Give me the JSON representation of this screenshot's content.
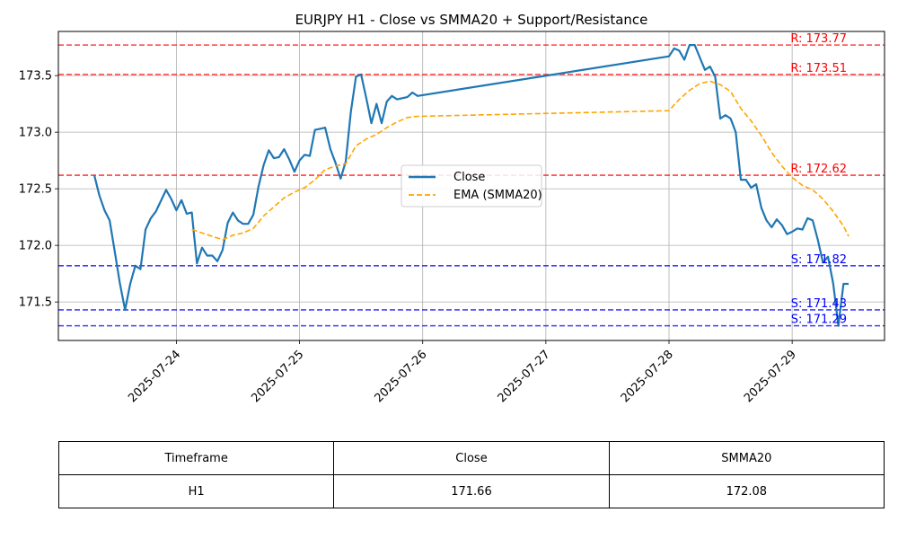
{
  "chart_data": {
    "type": "line",
    "title": "EURJPY H1 - Close vs SMMA20 + Support/Resistance",
    "xlabel": "",
    "ylabel": "",
    "grid": true,
    "legend_position": "center",
    "xlim": [
      "2025-07-23 01:00",
      "2025-07-29 18:00"
    ],
    "ylim": [
      171.16,
      173.89
    ],
    "x_ticks": [
      "2025-07-24",
      "2025-07-25",
      "2025-07-26",
      "2025-07-27",
      "2025-07-28",
      "2025-07-29"
    ],
    "y_ticks": [
      "171.5",
      "172.0",
      "172.5",
      "173.0",
      "173.5"
    ],
    "series": [
      {
        "name": "Close",
        "color": "#1f77b4",
        "style": "solid",
        "points": [
          [
            "2025-07-23 08:00",
            172.62
          ],
          [
            "2025-07-23 09:00",
            172.44
          ],
          [
            "2025-07-23 10:00",
            172.31
          ],
          [
            "2025-07-23 11:00",
            172.22
          ],
          [
            "2025-07-23 12:00",
            171.94
          ],
          [
            "2025-07-23 13:00",
            171.66
          ],
          [
            "2025-07-23 14:00",
            171.43
          ],
          [
            "2025-07-23 15:00",
            171.66
          ],
          [
            "2025-07-23 16:00",
            171.82
          ],
          [
            "2025-07-23 17:00",
            171.79
          ],
          [
            "2025-07-23 18:00",
            172.14
          ],
          [
            "2025-07-23 19:00",
            172.24
          ],
          [
            "2025-07-23 20:00",
            172.3
          ],
          [
            "2025-07-23 22:00",
            172.49
          ],
          [
            "2025-07-23 23:00",
            172.41
          ],
          [
            "2025-07-24 00:00",
            172.31
          ],
          [
            "2025-07-24 01:00",
            172.4
          ],
          [
            "2025-07-24 02:00",
            172.28
          ],
          [
            "2025-07-24 03:00",
            172.29
          ],
          [
            "2025-07-24 04:00",
            171.84
          ],
          [
            "2025-07-24 05:00",
            171.98
          ],
          [
            "2025-07-24 06:00",
            171.91
          ],
          [
            "2025-07-24 07:00",
            171.91
          ],
          [
            "2025-07-24 08:00",
            171.86
          ],
          [
            "2025-07-24 09:00",
            171.96
          ],
          [
            "2025-07-24 10:00",
            172.2
          ],
          [
            "2025-07-24 11:00",
            172.29
          ],
          [
            "2025-07-24 12:00",
            172.22
          ],
          [
            "2025-07-24 13:00",
            172.19
          ],
          [
            "2025-07-24 14:00",
            172.19
          ],
          [
            "2025-07-24 15:00",
            172.27
          ],
          [
            "2025-07-24 16:00",
            172.52
          ],
          [
            "2025-07-24 17:00",
            172.71
          ],
          [
            "2025-07-24 18:00",
            172.84
          ],
          [
            "2025-07-24 19:00",
            172.77
          ],
          [
            "2025-07-24 20:00",
            172.78
          ],
          [
            "2025-07-24 21:00",
            172.85
          ],
          [
            "2025-07-24 22:00",
            172.76
          ],
          [
            "2025-07-24 23:00",
            172.65
          ],
          [
            "2025-07-25 00:00",
            172.75
          ],
          [
            "2025-07-25 01:00",
            172.8
          ],
          [
            "2025-07-25 02:00",
            172.79
          ],
          [
            "2025-07-25 03:00",
            173.02
          ],
          [
            "2025-07-25 04:00",
            173.03
          ],
          [
            "2025-07-25 05:00",
            173.04
          ],
          [
            "2025-07-25 06:00",
            172.85
          ],
          [
            "2025-07-25 07:00",
            172.73
          ],
          [
            "2025-07-25 08:00",
            172.59
          ],
          [
            "2025-07-25 09:00",
            172.74
          ],
          [
            "2025-07-25 10:00",
            173.18
          ],
          [
            "2025-07-25 11:00",
            173.49
          ],
          [
            "2025-07-25 12:00",
            173.51
          ],
          [
            "2025-07-25 13:00",
            173.3
          ],
          [
            "2025-07-25 14:00",
            173.08
          ],
          [
            "2025-07-25 15:00",
            173.25
          ],
          [
            "2025-07-25 16:00",
            173.08
          ],
          [
            "2025-07-25 17:00",
            173.27
          ],
          [
            "2025-07-25 18:00",
            173.32
          ],
          [
            "2025-07-25 19:00",
            173.29
          ],
          [
            "2025-07-25 20:00",
            173.3
          ],
          [
            "2025-07-25 21:00",
            173.31
          ],
          [
            "2025-07-25 22:00",
            173.35
          ],
          [
            "2025-07-25 23:00",
            173.32
          ],
          [
            "2025-07-28 00:00",
            173.67
          ],
          [
            "2025-07-28 01:00",
            173.74
          ],
          [
            "2025-07-28 02:00",
            173.72
          ],
          [
            "2025-07-28 03:00",
            173.64
          ],
          [
            "2025-07-28 04:00",
            173.77
          ],
          [
            "2025-07-28 05:00",
            173.77
          ],
          [
            "2025-07-28 06:00",
            173.66
          ],
          [
            "2025-07-28 07:00",
            173.55
          ],
          [
            "2025-07-28 08:00",
            173.58
          ],
          [
            "2025-07-28 09:00",
            173.49
          ],
          [
            "2025-07-28 10:00",
            173.12
          ],
          [
            "2025-07-28 11:00",
            173.15
          ],
          [
            "2025-07-28 12:00",
            173.12
          ],
          [
            "2025-07-28 13:00",
            173.0
          ],
          [
            "2025-07-28 14:00",
            172.58
          ],
          [
            "2025-07-28 15:00",
            172.58
          ],
          [
            "2025-07-28 16:00",
            172.51
          ],
          [
            "2025-07-28 17:00",
            172.54
          ],
          [
            "2025-07-28 18:00",
            172.33
          ],
          [
            "2025-07-28 19:00",
            172.22
          ],
          [
            "2025-07-28 20:00",
            172.16
          ],
          [
            "2025-07-28 21:00",
            172.23
          ],
          [
            "2025-07-28 22:00",
            172.18
          ],
          [
            "2025-07-28 23:00",
            172.1
          ],
          [
            "2025-07-29 00:00",
            172.12
          ],
          [
            "2025-07-29 01:00",
            172.15
          ],
          [
            "2025-07-29 02:00",
            172.14
          ],
          [
            "2025-07-29 03:00",
            172.24
          ],
          [
            "2025-07-29 04:00",
            172.22
          ],
          [
            "2025-07-29 05:00",
            172.05
          ],
          [
            "2025-07-29 06:00",
            171.85
          ],
          [
            "2025-07-29 07:00",
            171.9
          ],
          [
            "2025-07-29 08:00",
            171.66
          ],
          [
            "2025-07-29 09:00",
            171.29
          ],
          [
            "2025-07-29 10:00",
            171.66
          ],
          [
            "2025-07-29 11:00",
            171.66
          ]
        ]
      },
      {
        "name": "EMA (SMMA20)",
        "color": "#ffa500",
        "style": "dashed",
        "points": [
          [
            "2025-07-24 03:00",
            172.14
          ],
          [
            "2025-07-24 05:00",
            172.11
          ],
          [
            "2025-07-24 07:00",
            172.08
          ],
          [
            "2025-07-24 09:00",
            172.05
          ],
          [
            "2025-07-24 11:00",
            172.09
          ],
          [
            "2025-07-24 13:00",
            172.11
          ],
          [
            "2025-07-24 15:00",
            172.15
          ],
          [
            "2025-07-24 17:00",
            172.26
          ],
          [
            "2025-07-24 19:00",
            172.34
          ],
          [
            "2025-07-24 21:00",
            172.42
          ],
          [
            "2025-07-24 23:00",
            172.47
          ],
          [
            "2025-07-25 01:00",
            172.51
          ],
          [
            "2025-07-25 03:00",
            172.58
          ],
          [
            "2025-07-25 05:00",
            172.67
          ],
          [
            "2025-07-25 07:00",
            172.7
          ],
          [
            "2025-07-25 09:00",
            172.72
          ],
          [
            "2025-07-25 11:00",
            172.88
          ],
          [
            "2025-07-25 13:00",
            172.94
          ],
          [
            "2025-07-25 15:00",
            172.98
          ],
          [
            "2025-07-25 17:00",
            173.04
          ],
          [
            "2025-07-25 19:00",
            173.09
          ],
          [
            "2025-07-25 21:00",
            173.13
          ],
          [
            "2025-07-25 23:00",
            173.14
          ],
          [
            "2025-07-28 00:00",
            173.19
          ],
          [
            "2025-07-28 02:00",
            173.29
          ],
          [
            "2025-07-28 04:00",
            173.37
          ],
          [
            "2025-07-28 06:00",
            173.43
          ],
          [
            "2025-07-28 08:00",
            173.45
          ],
          [
            "2025-07-28 10:00",
            173.42
          ],
          [
            "2025-07-28 12:00",
            173.36
          ],
          [
            "2025-07-28 14:00",
            173.21
          ],
          [
            "2025-07-28 16:00",
            173.1
          ],
          [
            "2025-07-28 18:00",
            172.97
          ],
          [
            "2025-07-28 20:00",
            172.82
          ],
          [
            "2025-07-28 22:00",
            172.7
          ],
          [
            "2025-07-29 00:00",
            172.6
          ],
          [
            "2025-07-29 02:00",
            172.53
          ],
          [
            "2025-07-29 04:00",
            172.49
          ],
          [
            "2025-07-29 06:00",
            172.41
          ],
          [
            "2025-07-29 08:00",
            172.3
          ],
          [
            "2025-07-29 10:00",
            172.17
          ],
          [
            "2025-07-29 11:00",
            172.08
          ]
        ]
      }
    ],
    "hlines": [
      {
        "kind": "resistance",
        "value": 173.77,
        "label": "R: 173.77",
        "color": "#ff0000"
      },
      {
        "kind": "resistance",
        "value": 173.51,
        "label": "R: 173.51",
        "color": "#ff0000"
      },
      {
        "kind": "resistance",
        "value": 172.62,
        "label": "R: 172.62",
        "color": "#ff0000"
      },
      {
        "kind": "support",
        "value": 171.82,
        "label": "S: 171.82",
        "color": "#0000ff"
      },
      {
        "kind": "support",
        "value": 171.43,
        "label": "S: 171.43",
        "color": "#0000ff"
      },
      {
        "kind": "support",
        "value": 171.29,
        "label": "S: 171.29",
        "color": "#0000ff"
      }
    ],
    "table": {
      "headers": [
        "Timeframe",
        "Close",
        "SMMA20"
      ],
      "rows": [
        [
          "H1",
          "171.66",
          "172.08"
        ]
      ]
    }
  }
}
